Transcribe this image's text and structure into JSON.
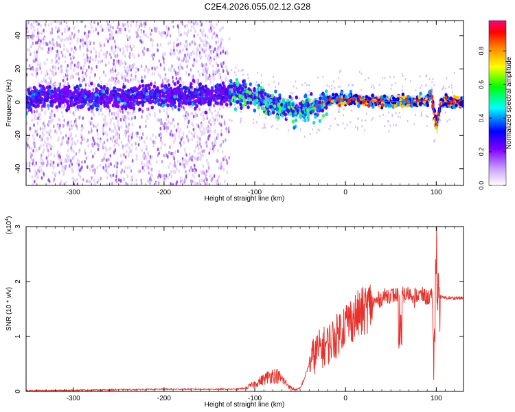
{
  "title": "C2E4.2026.055.02.12.G28",
  "chart_data": [
    {
      "type": "heatmap",
      "xlabel": "Height of straight line (km)",
      "ylabel": "Frequency (Hz)",
      "xlim": [
        -352,
        130
      ],
      "ylim": [
        -50,
        49
      ],
      "xticks": [
        -300,
        -200,
        -100,
        0,
        100
      ],
      "yticks": [
        -40,
        -20,
        0,
        20,
        40
      ],
      "colorbar": {
        "label": "Normalized spectral amplitude",
        "range": [
          0,
          0.98
        ],
        "ticks": [
          0.0,
          0.2,
          0.4,
          0.6,
          0.8
        ],
        "colormap": [
          "#ffffff",
          "#d9b8ff",
          "#7f00ff",
          "#0000ff",
          "#00ffff",
          "#00ff00",
          "#ffff00",
          "#ff7f00",
          "#ff0000",
          "#ff007f"
        ]
      },
      "ridge_center_hz": [
        [
          -350,
          3
        ],
        [
          -300,
          3
        ],
        [
          -250,
          3
        ],
        [
          -200,
          4
        ],
        [
          -150,
          4
        ],
        [
          -125,
          6
        ],
        [
          -100,
          3
        ],
        [
          -80,
          -1
        ],
        [
          -65,
          -3
        ],
        [
          -55,
          -5
        ],
        [
          -45,
          -4
        ],
        [
          -30,
          -2
        ],
        [
          -20,
          1
        ],
        [
          -10,
          2
        ],
        [
          0,
          2
        ],
        [
          20,
          1
        ],
        [
          40,
          0.5
        ],
        [
          60,
          0.5
        ],
        [
          80,
          0.5
        ],
        [
          90,
          1
        ],
        [
          94,
          6
        ],
        [
          97,
          -4
        ],
        [
          100,
          -14
        ],
        [
          105,
          0
        ],
        [
          130,
          0
        ]
      ],
      "noise_region_km": [
        -352,
        -128
      ]
    },
    {
      "type": "line",
      "xlabel": "Height of straight line (km)",
      "ylabel": "SNR (10 * v/v)",
      "scale_label": "(x10",
      "scale_exp": "4",
      "xlim": [
        -352,
        130
      ],
      "ylim": [
        0,
        3
      ],
      "xticks": [
        -300,
        -200,
        -100,
        0,
        100
      ],
      "yticks": [
        0,
        1,
        2,
        3
      ],
      "color": "#e8312b",
      "series": [
        {
          "x": [
            -352,
            -300,
            -250,
            -200,
            -150,
            -120,
            -110,
            -100,
            -95,
            -90,
            -85,
            -80,
            -75,
            -70,
            -65,
            -60,
            -55,
            -50,
            -45,
            -40,
            -35,
            -30,
            -25,
            -20,
            -15,
            -10,
            -5,
            0,
            5,
            10,
            15,
            20,
            25,
            30,
            35,
            40,
            45,
            50,
            55,
            60,
            65,
            70,
            75,
            80,
            85,
            90,
            95,
            98,
            100,
            102,
            105,
            110,
            130
          ],
          "y": [
            0.01,
            0.02,
            0.03,
            0.04,
            0.04,
            0.04,
            0.06,
            0.14,
            0.18,
            0.22,
            0.27,
            0.3,
            0.28,
            0.22,
            0.14,
            0.06,
            0.03,
            0.05,
            0.25,
            0.5,
            0.65,
            0.75,
            0.8,
            0.85,
            0.95,
            1.0,
            1.15,
            1.25,
            1.3,
            1.35,
            1.4,
            1.45,
            1.55,
            1.6,
            1.65,
            1.7,
            1.75,
            1.75,
            1.75,
            1.78,
            1.75,
            1.78,
            1.75,
            1.75,
            1.75,
            1.7,
            1.75,
            0.55,
            2.8,
            1.8,
            1.72,
            1.7,
            1.7
          ]
        }
      ]
    }
  ]
}
